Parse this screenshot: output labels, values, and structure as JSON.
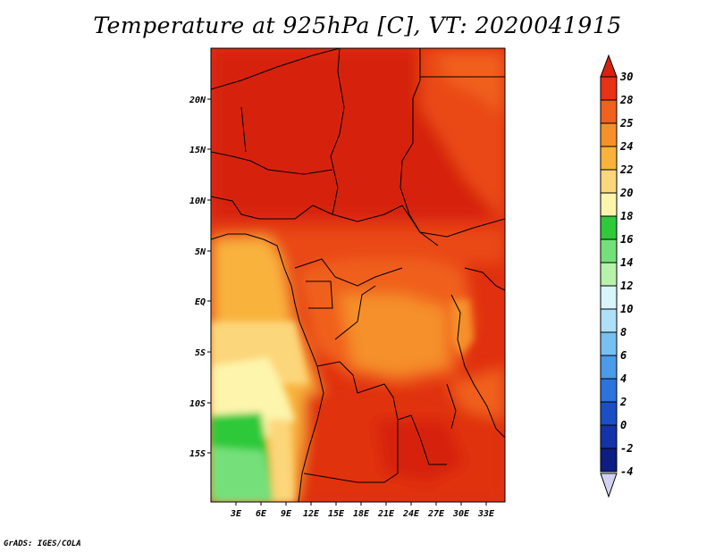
{
  "title": "Temperature at 925hPa [C], VT: 2020041915",
  "credit": "GrADS: IGES/COLA",
  "map": {
    "lon_labels": [
      "3E",
      "6E",
      "9E",
      "12E",
      "15E",
      "18E",
      "21E",
      "24E",
      "27E",
      "30E",
      "33E"
    ],
    "lat_labels": [
      "20N",
      "15N",
      "10N",
      "5N",
      "EQ",
      "5S",
      "10S",
      "15S"
    ]
  },
  "colorbar": {
    "levels": [
      "30",
      "28",
      "25",
      "24",
      "22",
      "20",
      "18",
      "16",
      "14",
      "12",
      "10",
      "8",
      "6",
      "4",
      "2",
      "0",
      "-2",
      "-4"
    ],
    "colors": {
      "above_30": "#d6220e",
      "28_30": "#e83214",
      "25_28": "#f0601e",
      "24_25": "#f5902a",
      "22_24": "#f9b33c",
      "20_22": "#fcd67a",
      "18_20": "#fdf5ac",
      "16_18": "#2fc93b",
      "14_16": "#74e07a",
      "12_14": "#b6f2ac",
      "10_12": "#d8f5fa",
      "8_10": "#aee0f8",
      "6_8": "#78bff2",
      "4_6": "#4c9ae8",
      "2_4": "#2d73dc",
      "0_2": "#1c4fc6",
      "-2_0": "#1433a8",
      "-4_-2": "#0d1d82",
      "below_-4": "#d2d2f0"
    }
  }
}
